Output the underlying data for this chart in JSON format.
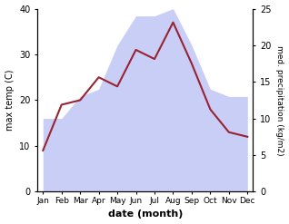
{
  "months": [
    "Jan",
    "Feb",
    "Mar",
    "Apr",
    "May",
    "Jun",
    "Jul",
    "Aug",
    "Sep",
    "Oct",
    "Nov",
    "Dec"
  ],
  "temperature": [
    9,
    19,
    20,
    25,
    23,
    31,
    29,
    37,
    28,
    18,
    13,
    12
  ],
  "precipitation": [
    10,
    10,
    13,
    14,
    20,
    24,
    24,
    25,
    20,
    14,
    13,
    13
  ],
  "temp_color": "#992233",
  "precip_fill_color": "#c8cef5",
  "precip_edge_color": "#b0b8f0",
  "temp_ylim": [
    0,
    40
  ],
  "precip_ylim": [
    0,
    25
  ],
  "ylabel_left": "max temp (C)",
  "ylabel_right": "med. precipitation (kg/m2)",
  "xlabel": "date (month)",
  "background_color": "#ffffff",
  "yticks_left": [
    0,
    10,
    20,
    30,
    40
  ],
  "yticks_right": [
    0,
    5,
    10,
    15,
    20,
    25
  ]
}
